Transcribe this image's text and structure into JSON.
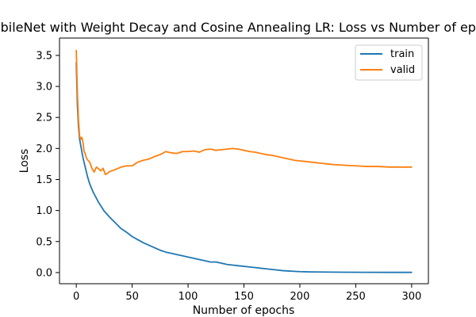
{
  "chart_data": {
    "type": "line",
    "title": "MobileNet with Weight Decay and Cosine Annealing LR: Loss vs Number of epochs",
    "xlabel": "Number of epochs",
    "ylabel": "Loss",
    "xlim": [
      -15,
      315
    ],
    "ylim": [
      -0.18,
      3.78
    ],
    "x_ticks": [
      0,
      50,
      100,
      150,
      200,
      250,
      300
    ],
    "y_ticks": [
      0.0,
      0.5,
      1.0,
      1.5,
      2.0,
      2.5,
      3.0,
      3.5
    ],
    "x_tick_labels": [
      "0",
      "50",
      "100",
      "150",
      "200",
      "250",
      "300"
    ],
    "y_tick_labels": [
      "0.0",
      "0.5",
      "1.0",
      "1.5",
      "2.0",
      "2.5",
      "3.0",
      "3.5"
    ],
    "legend_position": "top-right",
    "grid": false,
    "series": [
      {
        "name": "train",
        "color": "#1f77b4",
        "points": [
          [
            0,
            3.38
          ],
          [
            1,
            2.7
          ],
          [
            2,
            2.35
          ],
          [
            3,
            2.15
          ],
          [
            4,
            2.05
          ],
          [
            5,
            1.95
          ],
          [
            6,
            1.85
          ],
          [
            8,
            1.7
          ],
          [
            10,
            1.55
          ],
          [
            12,
            1.43
          ],
          [
            15,
            1.3
          ],
          [
            20,
            1.13
          ],
          [
            25,
            0.99
          ],
          [
            30,
            0.89
          ],
          [
            35,
            0.8
          ],
          [
            40,
            0.71
          ],
          [
            45,
            0.65
          ],
          [
            50,
            0.58
          ],
          [
            55,
            0.53
          ],
          [
            60,
            0.48
          ],
          [
            65,
            0.44
          ],
          [
            70,
            0.4
          ],
          [
            75,
            0.36
          ],
          [
            80,
            0.33
          ],
          [
            85,
            0.31
          ],
          [
            90,
            0.29
          ],
          [
            95,
            0.27
          ],
          [
            100,
            0.25
          ],
          [
            105,
            0.23
          ],
          [
            110,
            0.21
          ],
          [
            115,
            0.19
          ],
          [
            120,
            0.17
          ],
          [
            125,
            0.17
          ],
          [
            130,
            0.15
          ],
          [
            135,
            0.13
          ],
          [
            140,
            0.12
          ],
          [
            145,
            0.11
          ],
          [
            150,
            0.1
          ],
          [
            155,
            0.09
          ],
          [
            160,
            0.08
          ],
          [
            165,
            0.07
          ],
          [
            170,
            0.06
          ],
          [
            175,
            0.05
          ],
          [
            180,
            0.04
          ],
          [
            185,
            0.03
          ],
          [
            190,
            0.025
          ],
          [
            195,
            0.02
          ],
          [
            200,
            0.015
          ],
          [
            210,
            0.01
          ],
          [
            220,
            0.008
          ],
          [
            240,
            0.005
          ],
          [
            260,
            0.004
          ],
          [
            280,
            0.003
          ],
          [
            300,
            0.003
          ]
        ]
      },
      {
        "name": "valid",
        "color": "#ff7f0e",
        "points": [
          [
            0,
            3.58
          ],
          [
            1,
            2.9
          ],
          [
            2,
            2.45
          ],
          [
            3,
            2.2
          ],
          [
            4,
            2.15
          ],
          [
            5,
            2.18
          ],
          [
            6,
            2.1
          ],
          [
            7,
            1.95
          ],
          [
            8,
            1.92
          ],
          [
            9,
            1.85
          ],
          [
            10,
            1.82
          ],
          [
            12,
            1.78
          ],
          [
            14,
            1.68
          ],
          [
            16,
            1.62
          ],
          [
            18,
            1.7
          ],
          [
            20,
            1.67
          ],
          [
            22,
            1.64
          ],
          [
            24,
            1.68
          ],
          [
            26,
            1.58
          ],
          [
            28,
            1.6
          ],
          [
            30,
            1.63
          ],
          [
            35,
            1.66
          ],
          [
            40,
            1.7
          ],
          [
            45,
            1.72
          ],
          [
            50,
            1.72
          ],
          [
            55,
            1.78
          ],
          [
            60,
            1.81
          ],
          [
            65,
            1.83
          ],
          [
            70,
            1.87
          ],
          [
            75,
            1.9
          ],
          [
            80,
            1.95
          ],
          [
            85,
            1.93
          ],
          [
            90,
            1.92
          ],
          [
            95,
            1.95
          ],
          [
            100,
            1.95
          ],
          [
            105,
            1.96
          ],
          [
            110,
            1.94
          ],
          [
            115,
            1.98
          ],
          [
            120,
            1.99
          ],
          [
            125,
            1.97
          ],
          [
            130,
            1.98
          ],
          [
            135,
            1.99
          ],
          [
            140,
            2.0
          ],
          [
            145,
            1.99
          ],
          [
            150,
            1.97
          ],
          [
            155,
            1.95
          ],
          [
            160,
            1.94
          ],
          [
            165,
            1.92
          ],
          [
            170,
            1.9
          ],
          [
            175,
            1.89
          ],
          [
            180,
            1.87
          ],
          [
            185,
            1.85
          ],
          [
            190,
            1.83
          ],
          [
            195,
            1.81
          ],
          [
            200,
            1.8
          ],
          [
            210,
            1.78
          ],
          [
            220,
            1.76
          ],
          [
            230,
            1.74
          ],
          [
            240,
            1.73
          ],
          [
            250,
            1.72
          ],
          [
            260,
            1.71
          ],
          [
            270,
            1.71
          ],
          [
            280,
            1.7
          ],
          [
            290,
            1.7
          ],
          [
            300,
            1.7
          ]
        ]
      }
    ]
  }
}
